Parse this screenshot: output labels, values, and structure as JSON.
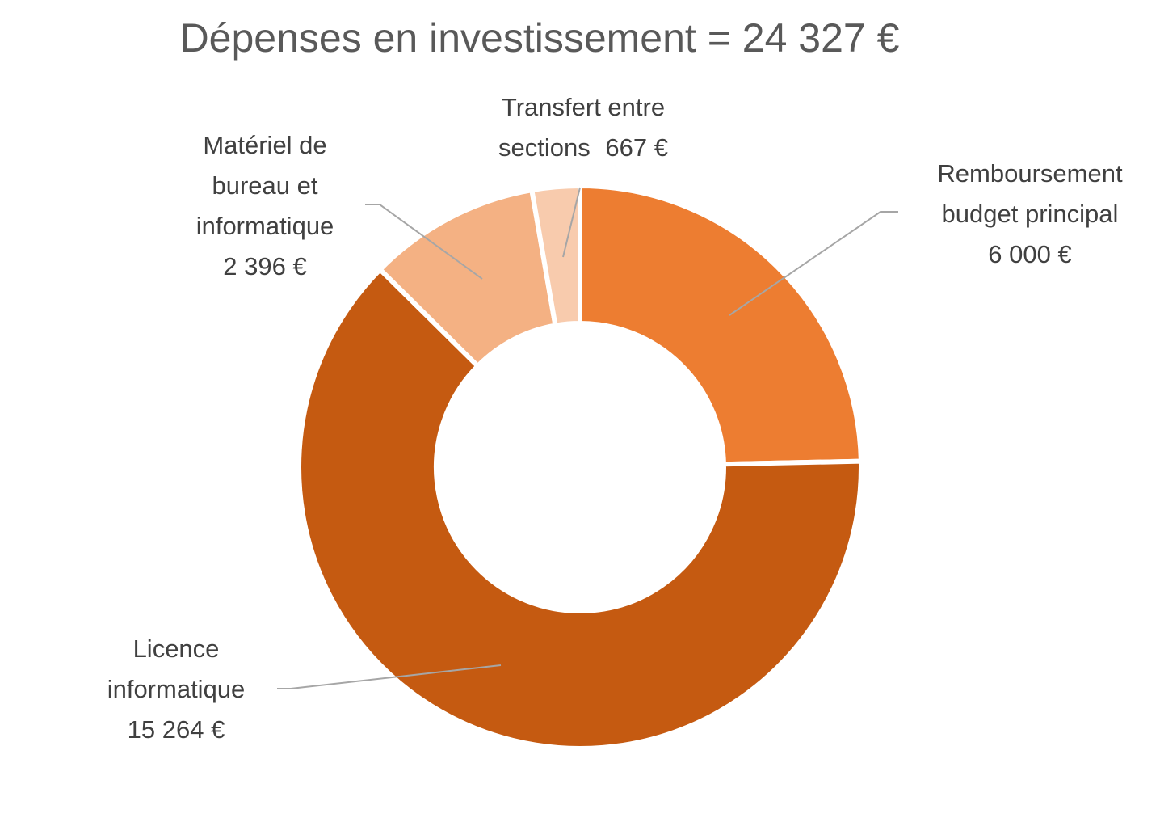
{
  "chart_data": {
    "type": "donut",
    "title": "Dépenses en investissement = 24 327 €",
    "categories": [
      "Remboursement budget principal",
      "Licence informatique",
      "Matériel de bureau et informatique",
      "Transfert entre sections"
    ],
    "values": [
      6000,
      15264,
      2396,
      667
    ],
    "value_labels": [
      "6 000 €",
      "15 264 €",
      "2 396 €",
      "667 €"
    ],
    "colors": [
      "#ED7D31",
      "#C55A11",
      "#F4B183",
      "#F8CBAD"
    ]
  }
}
